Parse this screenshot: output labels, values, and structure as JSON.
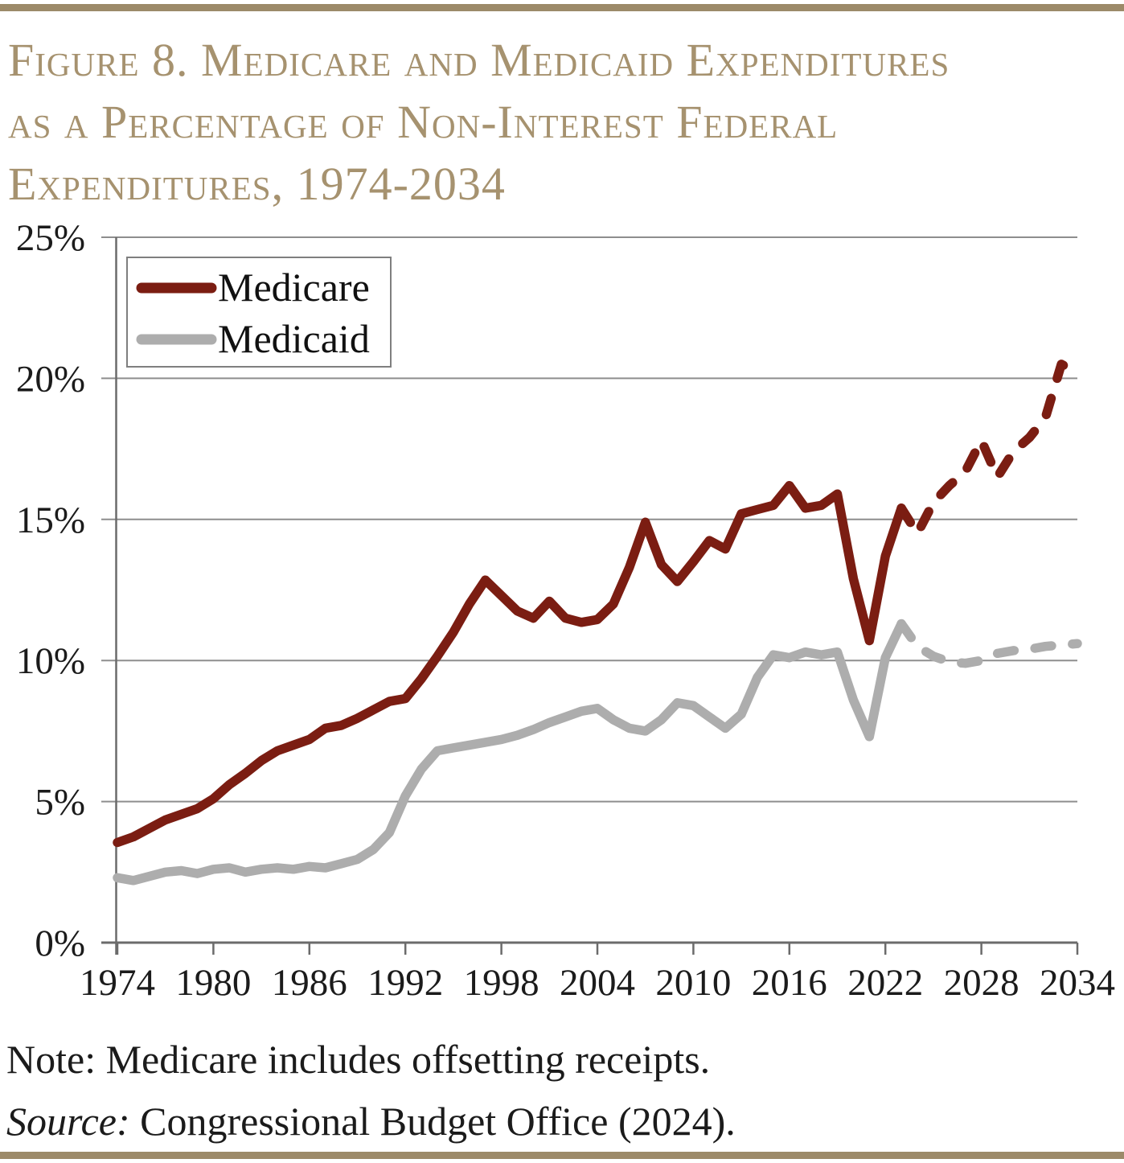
{
  "header": {
    "title_lines": [
      "Figure 8. Medicare and Medicaid Expenditures",
      "as a Percentage of Non-Interest Federal",
      "Expenditures, 1974-2034"
    ]
  },
  "footer": {
    "note": "Note: Medicare includes offsetting receipts.",
    "source_label": "Source:",
    "source_text": " Congressional Budget Office (2024)."
  },
  "colors": {
    "accent_bar": "#9c8a69",
    "title_text": "#a6926f",
    "body_text": "#1b1b1b",
    "grid": "#8e8e8e",
    "axis": "#6b6b6b",
    "medicare": "#7b1d12",
    "medicaid": "#adadad",
    "legend_border": "#7f7f7f"
  },
  "chart_data": {
    "type": "line",
    "title": "Medicare and Medicaid Expenditures as a Percentage of Non-Interest Federal Expenditures, 1974-2034",
    "x_start": 1974,
    "x_end": 2034,
    "xticks": [
      1974,
      1980,
      1986,
      1992,
      1998,
      2004,
      2010,
      2016,
      2022,
      2028,
      2034
    ],
    "yticks": [
      0,
      5,
      10,
      15,
      20,
      25
    ],
    "ytick_labels": [
      "0%",
      "5%",
      "10%",
      "15%",
      "20%",
      "25%"
    ],
    "ylim": [
      0,
      25
    ],
    "grid": true,
    "legend_position": "top-left",
    "projection_start_year": 2023,
    "series": [
      {
        "name": "Medicare",
        "color": "#7b1d12",
        "line_style": "solid-then-dashed",
        "values": [
          3.55,
          3.75,
          4.05,
          4.35,
          4.55,
          4.75,
          5.1,
          5.6,
          6.0,
          6.45,
          6.8,
          7.0,
          7.2,
          7.6,
          7.7,
          7.95,
          8.25,
          8.55,
          8.65,
          9.35,
          10.15,
          11.0,
          12.0,
          12.85,
          12.3,
          11.75,
          11.5,
          12.1,
          11.5,
          11.35,
          11.45,
          12.0,
          13.3,
          14.9,
          13.4,
          12.8,
          13.5,
          14.25,
          13.95,
          15.2,
          15.35,
          15.5,
          16.2,
          15.4,
          15.5,
          15.9,
          12.9,
          10.7,
          13.7,
          15.4,
          14.5,
          15.6,
          16.2,
          16.7,
          17.8,
          16.5,
          17.4,
          17.9,
          18.6,
          20.5,
          20.2
        ]
      },
      {
        "name": "Medicaid",
        "color": "#adadad",
        "line_style": "solid-then-dashed",
        "values": [
          2.3,
          2.2,
          2.35,
          2.5,
          2.55,
          2.45,
          2.6,
          2.65,
          2.5,
          2.6,
          2.65,
          2.6,
          2.7,
          2.65,
          2.8,
          2.95,
          3.3,
          3.9,
          5.2,
          6.15,
          6.8,
          6.9,
          7.0,
          7.1,
          7.2,
          7.35,
          7.55,
          7.8,
          8.0,
          8.2,
          8.3,
          7.9,
          7.6,
          7.5,
          7.9,
          8.5,
          8.4,
          8.0,
          7.6,
          8.1,
          9.4,
          10.2,
          10.1,
          10.3,
          10.2,
          10.3,
          8.6,
          7.3,
          10.1,
          11.3,
          10.5,
          10.15,
          9.95,
          9.9,
          10.0,
          10.25,
          10.35,
          10.4,
          10.5,
          10.55,
          10.6
        ]
      }
    ]
  }
}
